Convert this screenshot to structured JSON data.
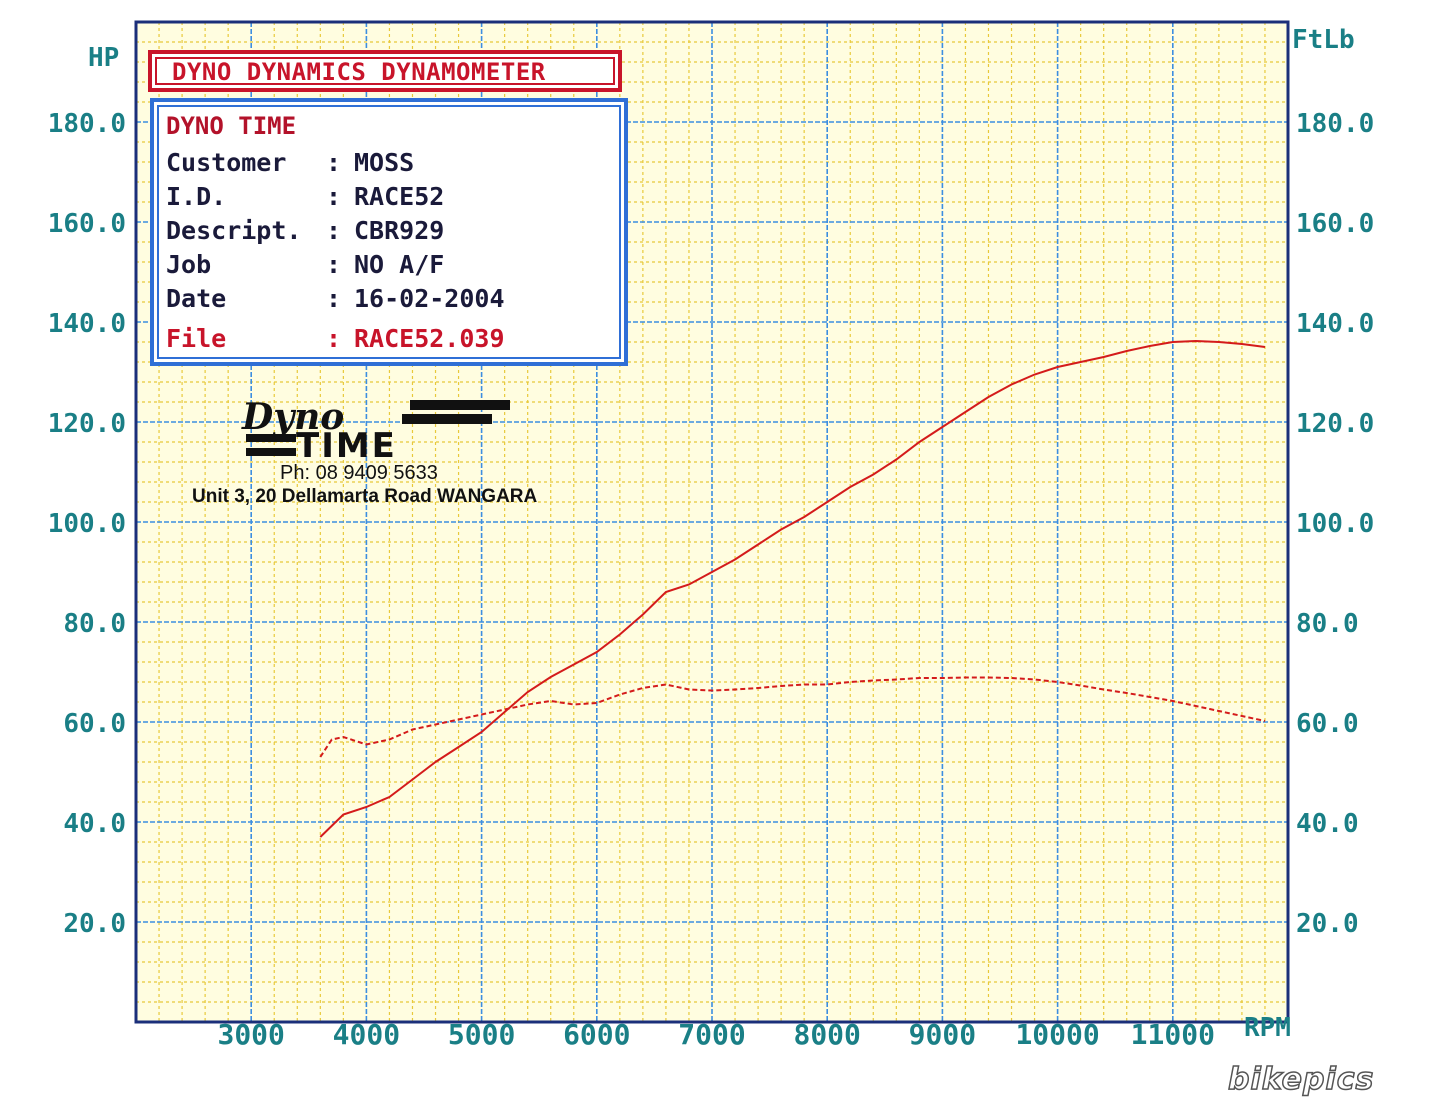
{
  "header": {
    "title": "DYNO DYNAMICS DYNAMOMETER"
  },
  "info": {
    "heading": "DYNO TIME",
    "rows": [
      {
        "key": "Customer",
        "value": "MOSS"
      },
      {
        "key": "I.D.",
        "value": "RACE52"
      },
      {
        "key": "Descript.",
        "value": "CBR929"
      },
      {
        "key": "Job",
        "value": "NO A/F"
      },
      {
        "key": "Date",
        "value": "16-02-2004"
      },
      {
        "key": "File",
        "value": "RACE52.039"
      }
    ]
  },
  "logo": {
    "line1": "Dyno",
    "line2": "TIME",
    "phone": "Ph: 08 9409 5633",
    "address": "Unit 3, 20 Dellamarta Road WANGARA"
  },
  "watermark": "bikepics",
  "colors": {
    "grid_major": "#3c8ee0",
    "grid_minor": "#e8c93a",
    "background": "#fffde0",
    "curve": "#d41b1b",
    "axis_text": "#1a7f86",
    "frame": "#1b2f7a"
  },
  "chart_data": {
    "type": "line",
    "title": "DYNO DYNAMICS DYNAMOMETER",
    "xlabel": "RPM",
    "ylabel_left": "HP",
    "ylabel_right": "FtLb",
    "xlim": [
      2000,
      12000
    ],
    "ylim_left": [
      0,
      200
    ],
    "ylim_right": [
      0,
      200
    ],
    "x_ticks": [
      3000,
      4000,
      5000,
      6000,
      7000,
      8000,
      9000,
      10000,
      11000
    ],
    "y_ticks_left": [
      "180.0",
      "160.0",
      "140.0",
      "120.0",
      "100.0",
      "80.0",
      "60.0",
      "40.0",
      "20.0"
    ],
    "y_ticks_right": [
      "180.0",
      "160.0",
      "140.0",
      "120.0",
      "100.0",
      "80.0",
      "60.0",
      "40.0",
      "20.0"
    ],
    "grid": true,
    "series": [
      {
        "style": "solid",
        "axis": "left",
        "x": [
          3600,
          3800,
          4000,
          4200,
          4400,
          4600,
          4800,
          5000,
          5200,
          5400,
          5600,
          5800,
          6000,
          6200,
          6400,
          6600,
          6800,
          7000,
          7200,
          7400,
          7600,
          7800,
          8000,
          8200,
          8400,
          8600,
          8800,
          9000,
          9200,
          9400,
          9600,
          9800,
          10000,
          10200,
          10400,
          10600,
          10800,
          11000,
          11200,
          11400,
          11600,
          11800
        ],
        "y": [
          37,
          41.5,
          43,
          45,
          48.5,
          52,
          55,
          58,
          62,
          66,
          69,
          71.5,
          74,
          77.5,
          81.5,
          86,
          87.5,
          90,
          92.5,
          95.5,
          98.5,
          101,
          104,
          107,
          109.5,
          112.5,
          116,
          119,
          122,
          125,
          127.5,
          129.5,
          131,
          132,
          133,
          134.2,
          135.2,
          136,
          136.2,
          136,
          135.6,
          135
        ]
      },
      {
        "style": "dashed",
        "axis": "right",
        "x": [
          3600,
          3700,
          3800,
          4000,
          4200,
          4400,
          4600,
          4800,
          5000,
          5200,
          5400,
          5600,
          5800,
          6000,
          6200,
          6400,
          6600,
          6800,
          7000,
          7200,
          7400,
          7600,
          7800,
          8000,
          8200,
          8400,
          8600,
          8800,
          9000,
          9200,
          9400,
          9600,
          9800,
          10000,
          10200,
          10400,
          10600,
          10800,
          11000,
          11200,
          11400,
          11600,
          11800
        ],
        "y": [
          53,
          56.5,
          57,
          55.5,
          56.5,
          58.5,
          59.5,
          60.5,
          61.5,
          62.5,
          63.5,
          64.2,
          63.5,
          63.8,
          65.5,
          66.8,
          67.5,
          66.5,
          66.3,
          66.5,
          66.8,
          67.2,
          67.5,
          67.5,
          68,
          68.3,
          68.5,
          68.8,
          68.8,
          68.9,
          68.9,
          68.8,
          68.5,
          68,
          67.3,
          66.5,
          65.8,
          65,
          64.2,
          63.2,
          62.2,
          61.2,
          60.2
        ]
      }
    ]
  }
}
